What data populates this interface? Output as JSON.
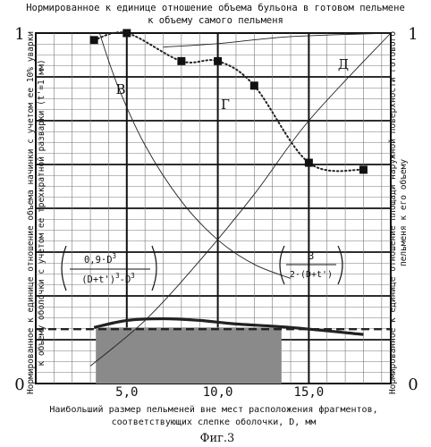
{
  "figure_label": "Фиг.3",
  "top_caption": [
    "Нормированное к единице отношение объема бульона в готовом пельмене",
    "к объему самого пельменя"
  ],
  "xlabel": [
    "Наибольший размер пельменей вне мест расположения фрагментов,",
    "соответствующих слепке оболочки, D, мм"
  ],
  "left_ylabel": [
    "Нормированное к единице отношение объема начинки с учетом ее 10% уварки",
    "к объему оболочки с учетом ее трехкратной разварки (t'=1 мм)"
  ],
  "right_ylabel": [
    "Нормированное к единице отношение площади наружной поверхности готового",
    "пельменя к его объему"
  ],
  "left_y_ticks": [
    "1",
    "0"
  ],
  "right_y_ticks": [
    "1",
    "0"
  ],
  "formula_left": {
    "numerator": "0,9·D",
    "numerator_exp": "3",
    "denominator": "(D+t')",
    "denominator_exp": "3",
    "denominator_tail": "-D",
    "denominator_tail_exp": "3"
  },
  "formula_right": {
    "numerator": "3",
    "denominator": "2·(D+t')"
  },
  "curve_labels": {
    "B": "В",
    "G": "Г",
    "D": "Д"
  },
  "colors": {
    "grid": "#111111",
    "curve": "#222222",
    "shade": "#8a8a8a"
  },
  "chart_data": {
    "type": "line",
    "x_ticks": [
      "5,0",
      "10,0",
      "15,0"
    ],
    "x_tick_values": [
      5,
      10,
      15
    ],
    "xlim": [
      0,
      19.5
    ],
    "ylim": [
      0,
      1
    ],
    "grid": true,
    "series": [
      {
        "name": "В",
        "style": "thin",
        "x": [
          3.5,
          4.5,
          6,
          8,
          10,
          12,
          14
        ],
        "y": [
          1.0,
          0.85,
          0.68,
          0.52,
          0.41,
          0.34,
          0.3
        ]
      },
      {
        "name": "Г",
        "style": "dotted-with-markers",
        "x": [
          3.2,
          5,
          8,
          10,
          12,
          15,
          18
        ],
        "y": [
          0.98,
          1.0,
          0.92,
          0.92,
          0.85,
          0.63,
          0.61
        ]
      },
      {
        "name": "Д",
        "style": "thin",
        "x": [
          3.0,
          6,
          9,
          12,
          15,
          19.5
        ],
        "y": [
          0.05,
          0.18,
          0.35,
          0.54,
          0.75,
          1.0
        ]
      },
      {
        "name": "",
        "style": "thin",
        "x": [
          7,
          10,
          14,
          19.5
        ],
        "y": [
          0.96,
          0.97,
          0.99,
          1.0
        ]
      },
      {
        "name": "",
        "style": "thick",
        "x": [
          3.2,
          5,
          7,
          9,
          11,
          14,
          18
        ],
        "y": [
          0.16,
          0.18,
          0.185,
          0.18,
          0.17,
          0.16,
          0.14
        ]
      },
      {
        "name": "",
        "style": "dashed",
        "x": [
          0,
          19.5
        ],
        "y": [
          0.155,
          0.155
        ]
      }
    ],
    "shaded_region": {
      "x": [
        3.3,
        13.5
      ],
      "y_top": [
        0.16,
        0.16
      ],
      "y_bottom": [
        0,
        0
      ]
    },
    "markers": {
      "x": [
        3.2,
        5,
        8,
        10,
        12,
        15,
        18
      ],
      "y": [
        0.98,
        1.0,
        0.92,
        0.92,
        0.85,
        0.63,
        0.61
      ]
    }
  }
}
